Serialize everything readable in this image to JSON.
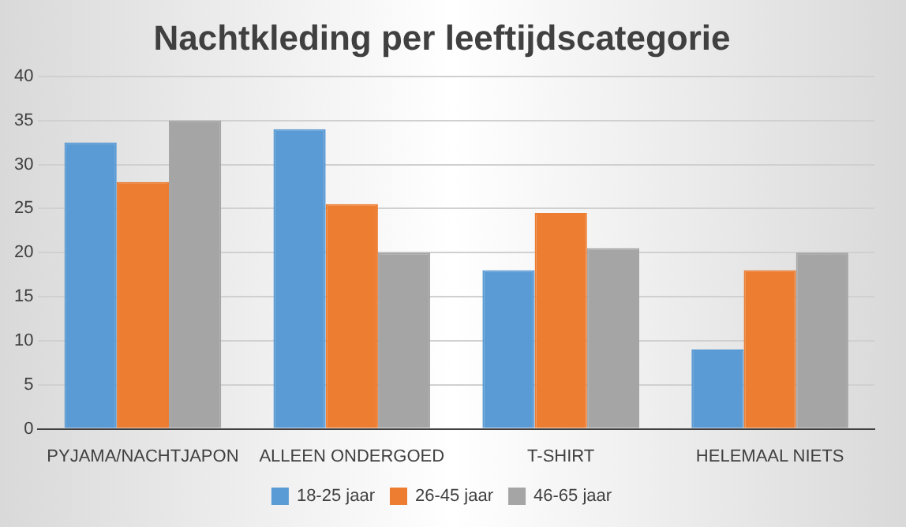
{
  "chart_data": {
    "type": "bar",
    "title": "Nachtkleding per leeftijdscategorie",
    "categories": [
      "PYJAMA/NACHTJAPON",
      "ALLEEN ONDERGOED",
      "T-SHIRT",
      "HELEMAAL NIETS"
    ],
    "series": [
      {
        "name": "18-25 jaar",
        "color": "#5b9bd5",
        "values": [
          32.5,
          34,
          18,
          9
        ]
      },
      {
        "name": "26-45 jaar",
        "color": "#ed7d31",
        "values": [
          28,
          25.5,
          24.5,
          18
        ]
      },
      {
        "name": "46-65 jaar",
        "color": "#a5a5a5",
        "values": [
          35,
          20,
          20.5,
          20
        ]
      }
    ],
    "ylim": [
      0,
      40
    ],
    "yticks": [
      0,
      5,
      10,
      15,
      20,
      25,
      30,
      35,
      40
    ],
    "grid": "y",
    "legend": "bottom"
  }
}
